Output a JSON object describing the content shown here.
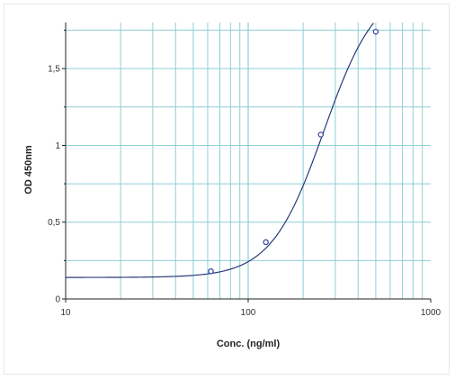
{
  "chart_data": {
    "type": "scatter",
    "title": "",
    "xlabel": "Conc. (ng/ml)",
    "ylabel": "OD 450nm",
    "x_scale": "log",
    "xlim": [
      10,
      1000
    ],
    "ylim": [
      0,
      1.8
    ],
    "x_ticks": [
      {
        "value": 10,
        "label": "10"
      },
      {
        "value": 100,
        "label": "100"
      },
      {
        "value": 1000,
        "label": "1000"
      }
    ],
    "y_ticks": [
      {
        "value": 0,
        "label": "0"
      },
      {
        "value": 0.5,
        "label": "0,5"
      },
      {
        "value": 1,
        "label": "1"
      },
      {
        "value": 1.5,
        "label": "1,5"
      }
    ],
    "grid": true,
    "series": [
      {
        "points": [
          {
            "x": 62.5,
            "y": 0.18
          },
          {
            "x": 125,
            "y": 0.37
          },
          {
            "x": 250,
            "y": 1.07
          },
          {
            "x": 500,
            "y": 1.74
          }
        ],
        "fit": "four-parameter logistic curve",
        "fit_params": {
          "bottom": 0.14,
          "top": 2.05,
          "ec50": 260,
          "hill": 3.0
        }
      }
    ],
    "colors": {
      "grid": "#8ecfd6",
      "curve": "#2a3a7a",
      "marker": "#3a4aa0",
      "axis": "#222222"
    }
  }
}
